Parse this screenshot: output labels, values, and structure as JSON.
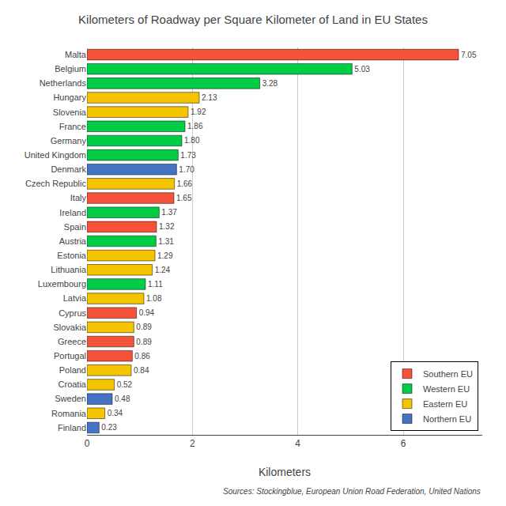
{
  "chart_data": {
    "type": "bar",
    "orientation": "horizontal",
    "title": "Kilometers of Roadway per Square Kilometer of Land in EU States",
    "xlabel": "Kilometers",
    "annotations": [
      "Sources: Stockingblue, European Union Road Federation, United Nations"
    ],
    "categories": [
      "Malta",
      "Belgium",
      "Netherlands",
      "Hungary",
      "Slovenia",
      "France",
      "Germany",
      "United Kingdom",
      "Denmark",
      "Czech Republic",
      "Italy",
      "Ireland",
      "Spain",
      "Austria",
      "Estonia",
      "Lithuania",
      "Luxembourg",
      "Latvia",
      "Cyprus",
      "Slovakia",
      "Greece",
      "Portugal",
      "Poland",
      "Croatia",
      "Sweden",
      "Romania",
      "Finland"
    ],
    "series": [
      {
        "name": "Southern EU",
        "color": "#f4533a",
        "values": [
          7.05,
          null,
          null,
          null,
          null,
          null,
          null,
          null,
          null,
          null,
          1.65,
          null,
          1.32,
          null,
          null,
          null,
          null,
          null,
          0.94,
          null,
          0.89,
          0.86,
          null,
          null,
          null,
          null,
          null
        ],
        "value_labels": [
          "7.05",
          null,
          null,
          null,
          null,
          null,
          null,
          null,
          null,
          null,
          "1.65",
          null,
          "1.32",
          null,
          null,
          null,
          null,
          null,
          "0.94",
          null,
          "0.89",
          "0.86",
          null,
          null,
          null,
          null,
          null
        ]
      },
      {
        "name": "Western EU",
        "color": "#00cc44",
        "values": [
          null,
          5.03,
          3.28,
          null,
          null,
          1.86,
          1.8,
          1.73,
          null,
          null,
          null,
          1.37,
          null,
          1.31,
          null,
          null,
          1.11,
          null,
          null,
          null,
          null,
          null,
          null,
          null,
          null,
          null,
          null
        ],
        "value_labels": [
          null,
          "5.03",
          "3.28",
          null,
          null,
          "1.86",
          "1.80",
          "1.73",
          null,
          null,
          null,
          "1.37",
          null,
          "1.31",
          null,
          null,
          "1.11",
          null,
          null,
          null,
          null,
          null,
          null,
          null,
          null,
          null,
          null
        ]
      },
      {
        "name": "Eastern EU",
        "color": "#f5c400",
        "values": [
          null,
          null,
          null,
          2.13,
          1.92,
          null,
          null,
          null,
          null,
          1.66,
          null,
          null,
          null,
          null,
          1.29,
          1.24,
          null,
          1.08,
          null,
          0.89,
          null,
          null,
          0.84,
          0.52,
          null,
          0.34,
          null
        ],
        "value_labels": [
          null,
          null,
          null,
          "2.13",
          "1.92",
          null,
          null,
          null,
          null,
          "1.66",
          null,
          null,
          null,
          null,
          "1.29",
          "1.24",
          null,
          "1.08",
          null,
          "0.89",
          null,
          null,
          "0.84",
          "0.52",
          null,
          "0.34",
          null
        ]
      },
      {
        "name": "Northern EU",
        "color": "#4472c4",
        "values": [
          null,
          null,
          null,
          null,
          null,
          null,
          null,
          null,
          1.7,
          null,
          null,
          null,
          null,
          null,
          null,
          null,
          null,
          null,
          null,
          null,
          null,
          null,
          null,
          null,
          0.48,
          null,
          0.23
        ],
        "value_labels": [
          null,
          null,
          null,
          null,
          null,
          null,
          null,
          null,
          "1.70",
          null,
          null,
          null,
          null,
          null,
          null,
          null,
          null,
          null,
          null,
          null,
          null,
          null,
          null,
          null,
          "0.48",
          null,
          "0.23"
        ]
      }
    ],
    "xlim": [
      0,
      7.5
    ],
    "xticks": [
      0,
      2,
      4,
      6
    ],
    "grid": true,
    "data_labels": true,
    "legend": "lower right"
  }
}
